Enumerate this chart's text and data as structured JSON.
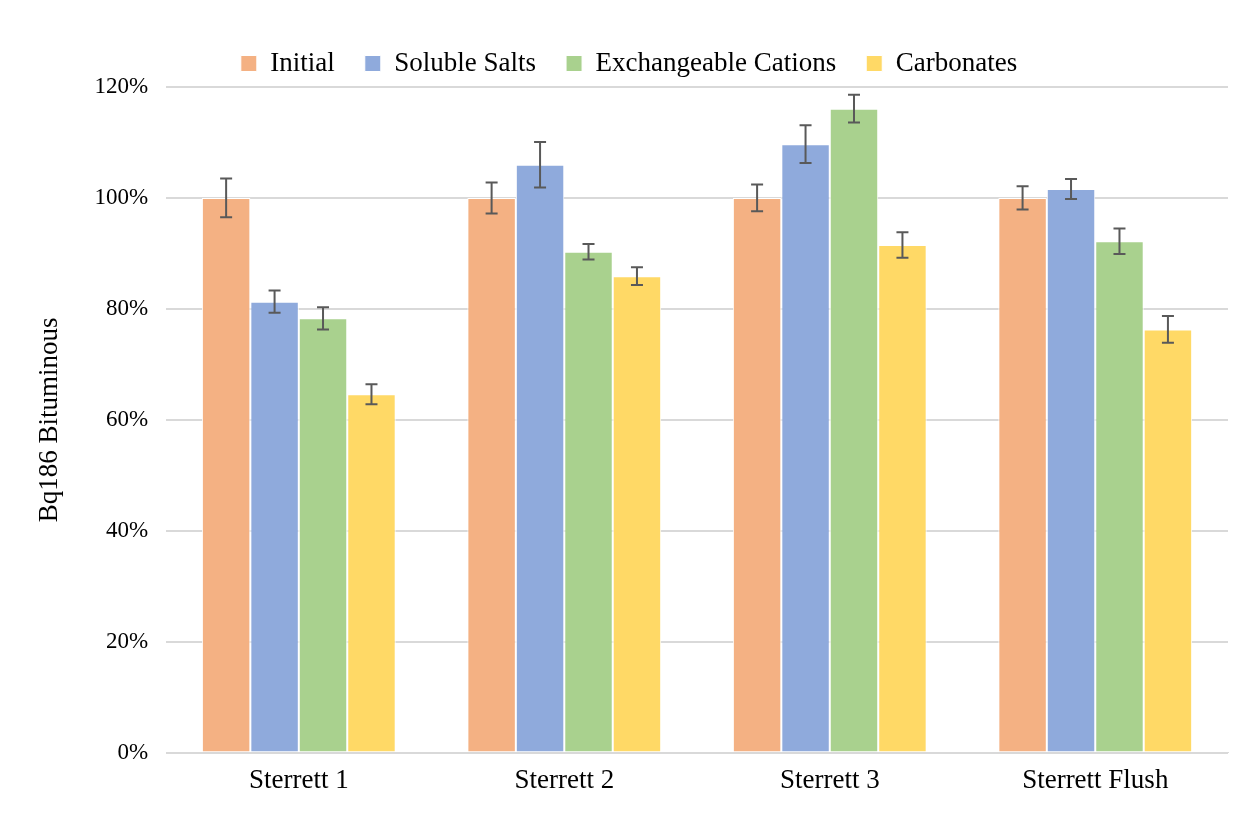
{
  "chart_data": {
    "type": "bar",
    "ylabel": "Bq186 Bituminous",
    "categories": [
      "Sterrett 1",
      "Sterrett 2",
      "Sterrett 3",
      "Sterrett Flush"
    ],
    "series": [
      {
        "name": "Initial",
        "color": "#f4b183",
        "values": [
          100,
          100,
          100,
          100
        ],
        "errors": [
          3.5,
          2.8,
          2.4,
          2.1
        ]
      },
      {
        "name": "Soluble Salts",
        "color": "#8faadc",
        "values": [
          81.3,
          106,
          109.7,
          101.6
        ],
        "errors": [
          2,
          4.1,
          3.4,
          1.8
        ]
      },
      {
        "name": "Exchangeable Cations",
        "color": "#a9d18e",
        "values": [
          78.3,
          90.3,
          116.1,
          92.2
        ],
        "errors": [
          2,
          1.4,
          2.5,
          2.3
        ]
      },
      {
        "name": "Carbonates",
        "color": "#ffd966",
        "values": [
          64.6,
          85.9,
          91.5,
          76.3
        ],
        "errors": [
          1.8,
          1.6,
          2.3,
          2.4
        ]
      }
    ],
    "ylim": [
      0,
      120
    ],
    "yticks": [
      {
        "value": 0,
        "label": "0%"
      },
      {
        "value": 20,
        "label": "20%"
      },
      {
        "value": 40,
        "label": "40%"
      },
      {
        "value": 60,
        "label": "60%"
      },
      {
        "value": 80,
        "label": "80%"
      },
      {
        "value": 100,
        "label": "100%"
      },
      {
        "value": 120,
        "label": "120%"
      }
    ],
    "grid": "y",
    "legend": "top"
  }
}
